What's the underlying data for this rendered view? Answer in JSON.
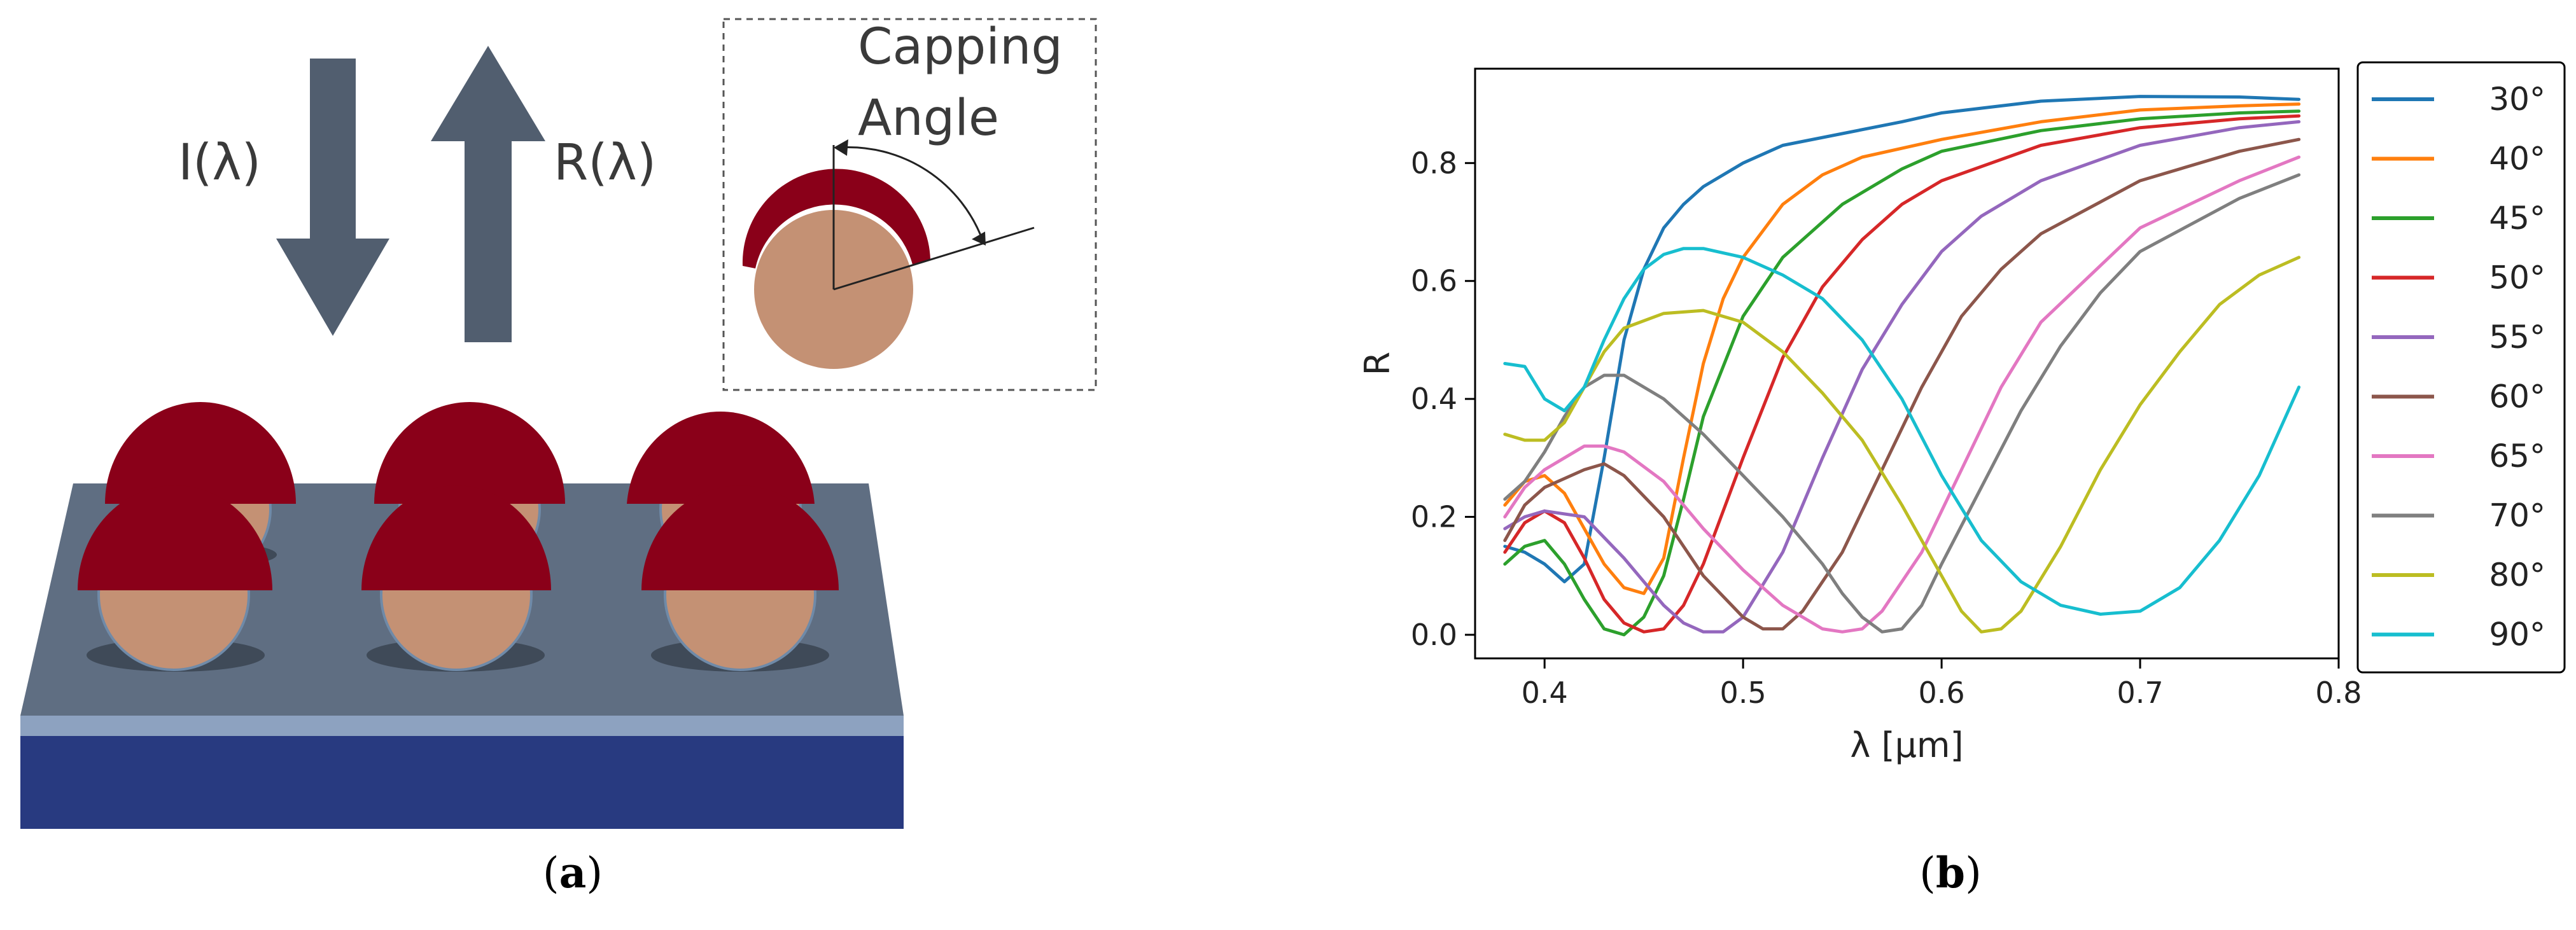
{
  "panel_a": {
    "caption_letter": "a",
    "incident_label": "I(λ)",
    "reflected_label": "R(λ)",
    "inset_title_line1": "Capping",
    "inset_title_line2": "Angle",
    "colors": {
      "arrow": "#515e6f",
      "cap": "#8a0019",
      "sphere": "#c49174",
      "substrate_top": "#5f6e82",
      "substrate_front": "#4e5b6d",
      "thin_layer": "#8da2c0",
      "base": "#283a80"
    }
  },
  "panel_b": {
    "caption_letter": "b",
    "chart_data": {
      "type": "line",
      "xlabel": "λ [µm]",
      "ylabel": "R",
      "xlim": [
        0.365,
        0.8
      ],
      "ylim": [
        -0.04,
        0.96
      ],
      "xticks": [
        0.4,
        0.5,
        0.6,
        0.7,
        0.8
      ],
      "xtick_labels": [
        "0.4",
        "0.5",
        "0.6",
        "0.7",
        "0.8"
      ],
      "yticks": [
        0.0,
        0.2,
        0.4,
        0.6,
        0.8
      ],
      "ytick_labels": [
        "0.0",
        "0.2",
        "0.4",
        "0.6",
        "0.8"
      ],
      "grid": false,
      "legend_position": "outside-right",
      "series": [
        {
          "name": "30°",
          "color": "#1f77b4",
          "points": [
            [
              0.38,
              0.15
            ],
            [
              0.39,
              0.14
            ],
            [
              0.4,
              0.12
            ],
            [
              0.41,
              0.09
            ],
            [
              0.42,
              0.12
            ],
            [
              0.43,
              0.3
            ],
            [
              0.44,
              0.5
            ],
            [
              0.45,
              0.62
            ],
            [
              0.46,
              0.69
            ],
            [
              0.47,
              0.73
            ],
            [
              0.48,
              0.76
            ],
            [
              0.5,
              0.8
            ],
            [
              0.52,
              0.83
            ],
            [
              0.55,
              0.85
            ],
            [
              0.58,
              0.87
            ],
            [
              0.6,
              0.885
            ],
            [
              0.65,
              0.905
            ],
            [
              0.7,
              0.913
            ],
            [
              0.75,
              0.912
            ],
            [
              0.78,
              0.908
            ]
          ]
        },
        {
          "name": "40°",
          "color": "#ff7f0e",
          "points": [
            [
              0.38,
              0.22
            ],
            [
              0.39,
              0.26
            ],
            [
              0.4,
              0.27
            ],
            [
              0.41,
              0.24
            ],
            [
              0.42,
              0.18
            ],
            [
              0.43,
              0.12
            ],
            [
              0.44,
              0.08
            ],
            [
              0.45,
              0.07
            ],
            [
              0.46,
              0.13
            ],
            [
              0.47,
              0.3
            ],
            [
              0.48,
              0.46
            ],
            [
              0.49,
              0.57
            ],
            [
              0.5,
              0.64
            ],
            [
              0.52,
              0.73
            ],
            [
              0.54,
              0.78
            ],
            [
              0.56,
              0.81
            ],
            [
              0.6,
              0.84
            ],
            [
              0.65,
              0.87
            ],
            [
              0.7,
              0.89
            ],
            [
              0.75,
              0.897
            ],
            [
              0.78,
              0.9
            ]
          ]
        },
        {
          "name": "45°",
          "color": "#2ca02c",
          "points": [
            [
              0.38,
              0.12
            ],
            [
              0.39,
              0.15
            ],
            [
              0.4,
              0.16
            ],
            [
              0.41,
              0.12
            ],
            [
              0.42,
              0.06
            ],
            [
              0.43,
              0.01
            ],
            [
              0.44,
              0.0
            ],
            [
              0.45,
              0.03
            ],
            [
              0.46,
              0.1
            ],
            [
              0.47,
              0.23
            ],
            [
              0.48,
              0.37
            ],
            [
              0.5,
              0.54
            ],
            [
              0.52,
              0.64
            ],
            [
              0.55,
              0.73
            ],
            [
              0.58,
              0.79
            ],
            [
              0.6,
              0.82
            ],
            [
              0.65,
              0.855
            ],
            [
              0.7,
              0.875
            ],
            [
              0.75,
              0.885
            ],
            [
              0.78,
              0.888
            ]
          ]
        },
        {
          "name": "50°",
          "color": "#d62728",
          "points": [
            [
              0.38,
              0.14
            ],
            [
              0.39,
              0.19
            ],
            [
              0.4,
              0.21
            ],
            [
              0.41,
              0.19
            ],
            [
              0.42,
              0.13
            ],
            [
              0.43,
              0.06
            ],
            [
              0.44,
              0.02
            ],
            [
              0.45,
              0.005
            ],
            [
              0.46,
              0.01
            ],
            [
              0.47,
              0.05
            ],
            [
              0.48,
              0.12
            ],
            [
              0.5,
              0.3
            ],
            [
              0.52,
              0.47
            ],
            [
              0.54,
              0.59
            ],
            [
              0.56,
              0.67
            ],
            [
              0.58,
              0.73
            ],
            [
              0.6,
              0.77
            ],
            [
              0.65,
              0.83
            ],
            [
              0.7,
              0.86
            ],
            [
              0.75,
              0.875
            ],
            [
              0.78,
              0.88
            ]
          ]
        },
        {
          "name": "55°",
          "color": "#9467bd",
          "points": [
            [
              0.38,
              0.18
            ],
            [
              0.39,
              0.2
            ],
            [
              0.4,
              0.21
            ],
            [
              0.42,
              0.2
            ],
            [
              0.44,
              0.13
            ],
            [
              0.46,
              0.05
            ],
            [
              0.47,
              0.02
            ],
            [
              0.48,
              0.005
            ],
            [
              0.49,
              0.005
            ],
            [
              0.5,
              0.03
            ],
            [
              0.52,
              0.14
            ],
            [
              0.54,
              0.3
            ],
            [
              0.56,
              0.45
            ],
            [
              0.58,
              0.56
            ],
            [
              0.6,
              0.65
            ],
            [
              0.62,
              0.71
            ],
            [
              0.65,
              0.77
            ],
            [
              0.7,
              0.83
            ],
            [
              0.75,
              0.86
            ],
            [
              0.78,
              0.87
            ]
          ]
        },
        {
          "name": "60°",
          "color": "#8c564b",
          "points": [
            [
              0.38,
              0.16
            ],
            [
              0.39,
              0.22
            ],
            [
              0.4,
              0.25
            ],
            [
              0.42,
              0.28
            ],
            [
              0.43,
              0.29
            ],
            [
              0.44,
              0.27
            ],
            [
              0.46,
              0.2
            ],
            [
              0.48,
              0.1
            ],
            [
              0.5,
              0.03
            ],
            [
              0.51,
              0.01
            ],
            [
              0.52,
              0.01
            ],
            [
              0.53,
              0.04
            ],
            [
              0.55,
              0.14
            ],
            [
              0.57,
              0.28
            ],
            [
              0.59,
              0.42
            ],
            [
              0.61,
              0.54
            ],
            [
              0.63,
              0.62
            ],
            [
              0.65,
              0.68
            ],
            [
              0.7,
              0.77
            ],
            [
              0.75,
              0.82
            ],
            [
              0.78,
              0.84
            ]
          ]
        },
        {
          "name": "65°",
          "color": "#e377c2",
          "points": [
            [
              0.38,
              0.2
            ],
            [
              0.39,
              0.25
            ],
            [
              0.4,
              0.28
            ],
            [
              0.41,
              0.3
            ],
            [
              0.42,
              0.32
            ],
            [
              0.43,
              0.32
            ],
            [
              0.44,
              0.31
            ],
            [
              0.46,
              0.26
            ],
            [
              0.48,
              0.18
            ],
            [
              0.5,
              0.11
            ],
            [
              0.52,
              0.05
            ],
            [
              0.54,
              0.01
            ],
            [
              0.55,
              0.005
            ],
            [
              0.56,
              0.01
            ],
            [
              0.57,
              0.04
            ],
            [
              0.59,
              0.14
            ],
            [
              0.61,
              0.28
            ],
            [
              0.63,
              0.42
            ],
            [
              0.65,
              0.53
            ],
            [
              0.7,
              0.69
            ],
            [
              0.75,
              0.77
            ],
            [
              0.78,
              0.81
            ]
          ]
        },
        {
          "name": "70°",
          "color": "#7f7f7f",
          "points": [
            [
              0.38,
              0.23
            ],
            [
              0.39,
              0.26
            ],
            [
              0.4,
              0.31
            ],
            [
              0.41,
              0.37
            ],
            [
              0.42,
              0.42
            ],
            [
              0.43,
              0.44
            ],
            [
              0.44,
              0.44
            ],
            [
              0.46,
              0.4
            ],
            [
              0.48,
              0.34
            ],
            [
              0.5,
              0.27
            ],
            [
              0.52,
              0.2
            ],
            [
              0.54,
              0.12
            ],
            [
              0.55,
              0.07
            ],
            [
              0.56,
              0.03
            ],
            [
              0.57,
              0.005
            ],
            [
              0.58,
              0.01
            ],
            [
              0.59,
              0.05
            ],
            [
              0.6,
              0.12
            ],
            [
              0.62,
              0.25
            ],
            [
              0.64,
              0.38
            ],
            [
              0.66,
              0.49
            ],
            [
              0.68,
              0.58
            ],
            [
              0.7,
              0.65
            ],
            [
              0.75,
              0.74
            ],
            [
              0.78,
              0.78
            ]
          ]
        },
        {
          "name": "80°",
          "color": "#bcbd22",
          "points": [
            [
              0.38,
              0.34
            ],
            [
              0.39,
              0.33
            ],
            [
              0.4,
              0.33
            ],
            [
              0.41,
              0.36
            ],
            [
              0.42,
              0.42
            ],
            [
              0.43,
              0.48
            ],
            [
              0.44,
              0.52
            ],
            [
              0.46,
              0.545
            ],
            [
              0.48,
              0.55
            ],
            [
              0.5,
              0.53
            ],
            [
              0.52,
              0.48
            ],
            [
              0.54,
              0.41
            ],
            [
              0.56,
              0.33
            ],
            [
              0.58,
              0.22
            ],
            [
              0.6,
              0.1
            ],
            [
              0.61,
              0.04
            ],
            [
              0.62,
              0.005
            ],
            [
              0.63,
              0.01
            ],
            [
              0.64,
              0.04
            ],
            [
              0.66,
              0.15
            ],
            [
              0.68,
              0.28
            ],
            [
              0.7,
              0.39
            ],
            [
              0.72,
              0.48
            ],
            [
              0.74,
              0.56
            ],
            [
              0.76,
              0.61
            ],
            [
              0.78,
              0.64
            ]
          ]
        },
        {
          "name": "90°",
          "color": "#17becf",
          "points": [
            [
              0.38,
              0.46
            ],
            [
              0.39,
              0.455
            ],
            [
              0.4,
              0.4
            ],
            [
              0.41,
              0.38
            ],
            [
              0.42,
              0.42
            ],
            [
              0.43,
              0.5
            ],
            [
              0.44,
              0.57
            ],
            [
              0.45,
              0.62
            ],
            [
              0.46,
              0.645
            ],
            [
              0.47,
              0.655
            ],
            [
              0.48,
              0.655
            ],
            [
              0.5,
              0.64
            ],
            [
              0.52,
              0.61
            ],
            [
              0.54,
              0.57
            ],
            [
              0.56,
              0.5
            ],
            [
              0.58,
              0.4
            ],
            [
              0.6,
              0.27
            ],
            [
              0.62,
              0.16
            ],
            [
              0.64,
              0.09
            ],
            [
              0.66,
              0.05
            ],
            [
              0.68,
              0.035
            ],
            [
              0.7,
              0.04
            ],
            [
              0.72,
              0.08
            ],
            [
              0.74,
              0.16
            ],
            [
              0.76,
              0.27
            ],
            [
              0.78,
              0.42
            ]
          ]
        }
      ]
    }
  }
}
